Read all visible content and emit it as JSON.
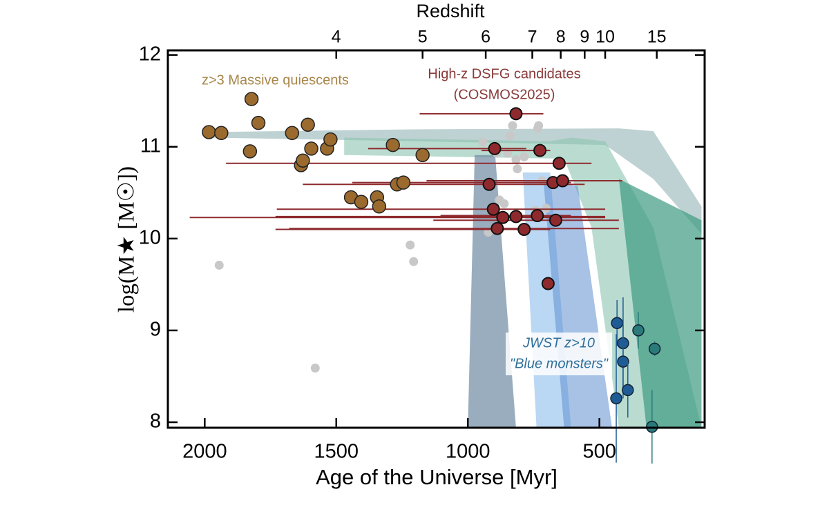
{
  "chart_data": {
    "type": "scatter",
    "xlabel": "Age of the Universe [Myr]",
    "ylabel": "log(M★ [M☉])",
    "top_label": "Redshift",
    "xlim": [
      2140,
      100
    ],
    "ylim": [
      7.94,
      12.05
    ],
    "xticks": [
      2000,
      1500,
      1000,
      500
    ],
    "yticks": [
      8,
      9,
      10,
      11,
      12
    ],
    "top_ticks": [
      {
        "value": 1500,
        "label": "4"
      },
      {
        "value": 1172,
        "label": "5"
      },
      {
        "value": 932,
        "label": "6"
      },
      {
        "value": 755,
        "label": "7"
      },
      {
        "value": 647,
        "label": "8"
      },
      {
        "value": 556,
        "label": "9"
      },
      {
        "value": 478,
        "label": "10"
      },
      {
        "value": 282,
        "label": "15"
      }
    ],
    "bands": [
      {
        "color": "#a9c3c4",
        "opacity": 0.75,
        "x": [
          1992,
          1209,
          426,
          295,
          112,
          112,
          295,
          478,
          1209,
          1992
        ],
        "y": [
          11.16,
          11.19,
          11.2,
          11.17,
          10.35,
          10.05,
          10.65,
          11.02,
          11.06,
          11.1
        ]
      },
      {
        "color": "#8cc4b0",
        "opacity": 0.6,
        "x": [
          1470,
          687,
          608,
          478,
          295,
          112,
          426,
          530,
          634,
          1470
        ],
        "y": [
          11.1,
          11.06,
          11.1,
          11.06,
          10.12,
          7.94,
          7.94,
          10.12,
          10.87,
          10.91
        ]
      },
      {
        "color": "#3e9a82",
        "opacity": 0.7,
        "x": [
          426,
          112,
          112,
          321
        ],
        "y": [
          10.65,
          10.2,
          7.94,
          7.94
        ]
      },
      {
        "color": "#6f8aa3",
        "opacity": 0.7,
        "x": [
          974,
          896,
          817,
          1000
        ],
        "y": [
          10.91,
          10.91,
          7.94,
          7.94
        ]
      },
      {
        "color": "#9cc6ee",
        "opacity": 0.7,
        "x": [
          791,
          687,
          608,
          739
        ],
        "y": [
          10.72,
          10.72,
          7.94,
          7.94
        ]
      },
      {
        "color": "#5f90d0",
        "opacity": 0.55,
        "x": [
          713,
          582,
          452,
          634
        ],
        "y": [
          10.65,
          10.57,
          7.94,
          7.94
        ]
      }
    ],
    "gray": {
      "color": "#c8c8c8",
      "x": [
        1945,
        1580,
        1219,
        1206,
        943,
        839,
        830,
        731,
        734,
        890,
        849,
        817,
        786,
        812,
        718,
        880,
        862,
        744,
        702,
        922
      ],
      "y": [
        9.71,
        8.59,
        9.93,
        9.75,
        11.05,
        11.12,
        11.23,
        11.23,
        11.2,
        10.93,
        10.93,
        10.86,
        10.89,
        10.76,
        10.63,
        10.42,
        10.38,
        10.31,
        10.33,
        10.07
      ]
    },
    "quiescents": {
      "label": "z>3 Massive quiescents",
      "color": "#9a6a2e",
      "text_color": "#a8864a",
      "x": [
        1984,
        1937,
        1822,
        1796,
        1828,
        1668,
        1608,
        1595,
        1634,
        1627,
        1535,
        1522,
        1444,
        1405,
        1345,
        1337,
        1285,
        1269,
        1245,
        1172
      ],
      "y": [
        11.16,
        11.15,
        11.52,
        11.26,
        10.95,
        11.15,
        11.24,
        10.98,
        10.8,
        10.85,
        10.98,
        11.08,
        10.45,
        10.4,
        10.45,
        10.35,
        11.02,
        10.59,
        10.61,
        10.91
      ]
    },
    "dsfg": {
      "label": [
        "High-z DSFG candidates",
        "(COSMOS2025)"
      ],
      "color": "#8e2a2e",
      "text_color": "#8a3a3a",
      "x": [
        817,
        898,
        726,
        653,
        919,
        676,
        640,
        903,
        867,
        817,
        736,
        666,
        888,
        786,
        695
      ],
      "y": [
        11.36,
        10.98,
        10.96,
        10.82,
        10.59,
        10.61,
        10.63,
        10.32,
        10.23,
        10.24,
        10.25,
        10.2,
        10.11,
        10.1,
        9.51
      ],
      "xlo": [
        1183,
        1379,
        948,
        1919,
        1627,
        1439,
        1157,
        1726,
        2057,
        1731,
        1104,
        1131,
        1679,
        1731,
        null
      ],
      "xhi": [
        713,
        778,
        687,
        530,
        556,
        608,
        413,
        478,
        478,
        478,
        608,
        426,
        426,
        687,
        null
      ]
    },
    "blue": {
      "label": [
        "JWST z>10",
        "\"Blue monsters\""
      ],
      "text_color": "#2f6f9a",
      "colors": [
        "#1f5c95",
        "#1f5c95",
        "#1f5c95",
        "#1f5c95",
        "#1f5c95",
        "#2a7a7a",
        "#2a7a7a",
        "#2a7a7a"
      ],
      "x": [
        433,
        410,
        410,
        392,
        436,
        352,
        290,
        300
      ],
      "y": [
        9.08,
        8.86,
        8.66,
        8.35,
        8.26,
        9.0,
        8.8,
        7.95
      ],
      "yerr": [
        0.25,
        0.5,
        0.4,
        0.3,
        0.7,
        0.2,
        0.08,
        0.4
      ]
    }
  }
}
